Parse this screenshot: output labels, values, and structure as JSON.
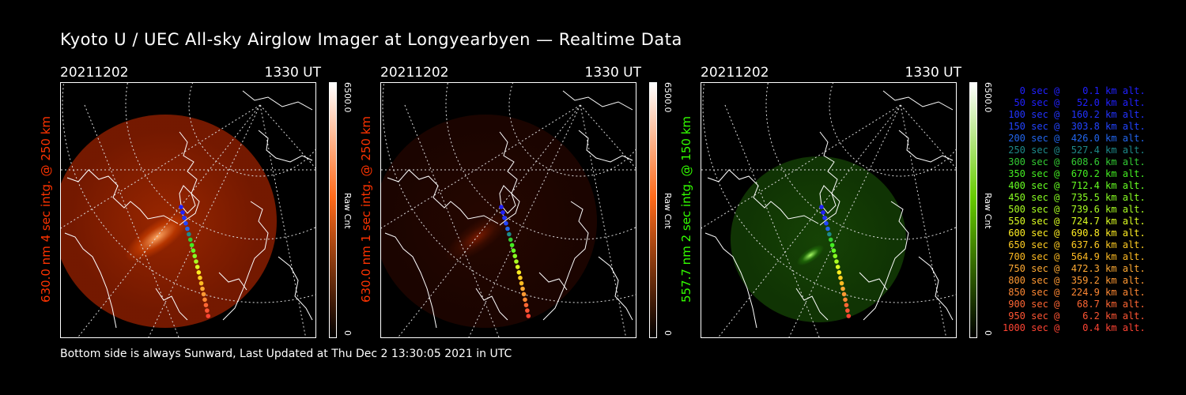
{
  "title": "Kyoto U / UEC All-sky Airglow Imager at Longyearbyen — Realtime Data",
  "footer": "Bottom side is always Sunward, Last Updated at Thu Dec  2 13:30:05 2021 in UTC",
  "panels": [
    {
      "date": "20211202",
      "time": "1330 UT",
      "label": "630.0 nm 4 sec intg. @ 250 km",
      "label_color": "#ff3300",
      "colorbar": {
        "max": "6500.0",
        "unit": "Raw Cnt",
        "min": "0",
        "low_color": "#000000",
        "high_color": "#ff6a1a"
      }
    },
    {
      "date": "20211202",
      "time": "1330 UT",
      "label": "630.0 nm 1 sec intg. @ 250 km",
      "label_color": "#ff3300",
      "colorbar": {
        "max": "6500.0",
        "unit": "Raw Cnt",
        "min": "0",
        "low_color": "#000000",
        "high_color": "#ff6a1a"
      }
    },
    {
      "date": "20211202",
      "time": "1330 UT",
      "label": "557.7 nm 2 sec intg. @ 150 km",
      "label_color": "#33ff00",
      "colorbar": {
        "max": "6500.0",
        "unit": "Raw Cnt",
        "min": "0",
        "low_color": "#000000",
        "high_color": "#66cc00"
      }
    }
  ],
  "trajectory_legend": [
    {
      "text": "   0 sec @    0.1 km alt.",
      "color": "#2020ff"
    },
    {
      "text": "  50 sec @   52.0 km alt.",
      "color": "#2020ff"
    },
    {
      "text": " 100 sec @  160.2 km alt.",
      "color": "#2233ff"
    },
    {
      "text": " 150 sec @  303.8 km alt.",
      "color": "#2244ff"
    },
    {
      "text": " 200 sec @  426.0 km alt.",
      "color": "#2266ee"
    },
    {
      "text": " 250 sec @  527.4 km alt.",
      "color": "#1e8a8a"
    },
    {
      "text": " 300 sec @  608.6 km alt.",
      "color": "#33cc33"
    },
    {
      "text": " 350 sec @  670.2 km alt.",
      "color": "#44ee22"
    },
    {
      "text": " 400 sec @  712.4 km alt.",
      "color": "#66ff22"
    },
    {
      "text": " 450 sec @  735.5 km alt.",
      "color": "#88ff22"
    },
    {
      "text": " 500 sec @  739.6 km alt.",
      "color": "#aaff22"
    },
    {
      "text": " 550 sec @  724.7 km alt.",
      "color": "#ddff22"
    },
    {
      "text": " 600 sec @  690.8 km alt.",
      "color": "#ffee22"
    },
    {
      "text": " 650 sec @  637.6 km alt.",
      "color": "#ffcc22"
    },
    {
      "text": " 700 sec @  564.9 km alt.",
      "color": "#ffbb22"
    },
    {
      "text": " 750 sec @  472.3 km alt.",
      "color": "#ffaa33"
    },
    {
      "text": " 800 sec @  359.2 km alt.",
      "color": "#ff9933"
    },
    {
      "text": " 850 sec @  224.9 km alt.",
      "color": "#ff8833"
    },
    {
      "text": " 900 sec @   68.7 km alt.",
      "color": "#ff6633"
    },
    {
      "text": " 950 sec @    6.2 km alt.",
      "color": "#ff5533"
    },
    {
      "text": "1000 sec @    0.4 km alt.",
      "color": "#ff4433"
    }
  ]
}
